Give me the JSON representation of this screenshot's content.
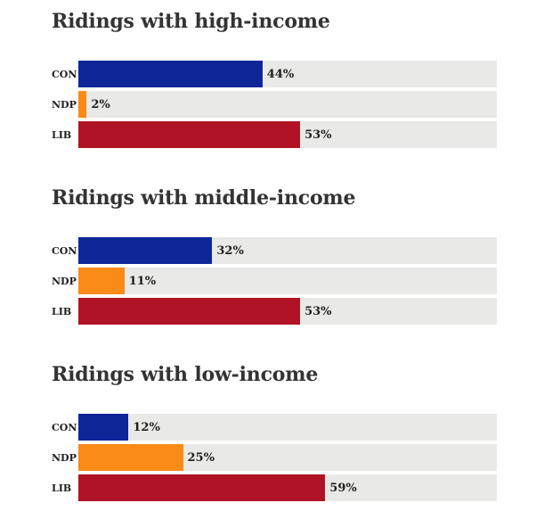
{
  "colors": {
    "CON": "#0f2699",
    "NDP": "#f98b16",
    "LIB": "#b01226",
    "track": "#e9e9e8",
    "title_text": "#333333",
    "value_text": "#1f1f1f"
  },
  "chart_data": [
    {
      "type": "bar",
      "orientation": "horizontal",
      "title": "Ridings with high-income",
      "categories": [
        "CON",
        "NDP",
        "LIB"
      ],
      "values": [
        44,
        2,
        53
      ],
      "value_labels": [
        "44%",
        "2%",
        "53%"
      ],
      "xlim": [
        0,
        100
      ],
      "grid": false,
      "legend": false,
      "bar_colors": [
        "#0f2699",
        "#f98b16",
        "#b01226"
      ]
    },
    {
      "type": "bar",
      "orientation": "horizontal",
      "title": "Ridings with middle-income",
      "categories": [
        "CON",
        "NDP",
        "LIB"
      ],
      "values": [
        32,
        11,
        53
      ],
      "value_labels": [
        "32%",
        "11%",
        "53%"
      ],
      "xlim": [
        0,
        100
      ],
      "grid": false,
      "legend": false,
      "bar_colors": [
        "#0f2699",
        "#f98b16",
        "#b01226"
      ]
    },
    {
      "type": "bar",
      "orientation": "horizontal",
      "title": "Ridings with low-income",
      "categories": [
        "CON",
        "NDP",
        "LIB"
      ],
      "values": [
        12,
        25,
        59
      ],
      "value_labels": [
        "12%",
        "25%",
        "59%"
      ],
      "xlim": [
        0,
        100
      ],
      "grid": false,
      "legend": false,
      "bar_colors": [
        "#0f2699",
        "#f98b16",
        "#b01226"
      ]
    }
  ]
}
